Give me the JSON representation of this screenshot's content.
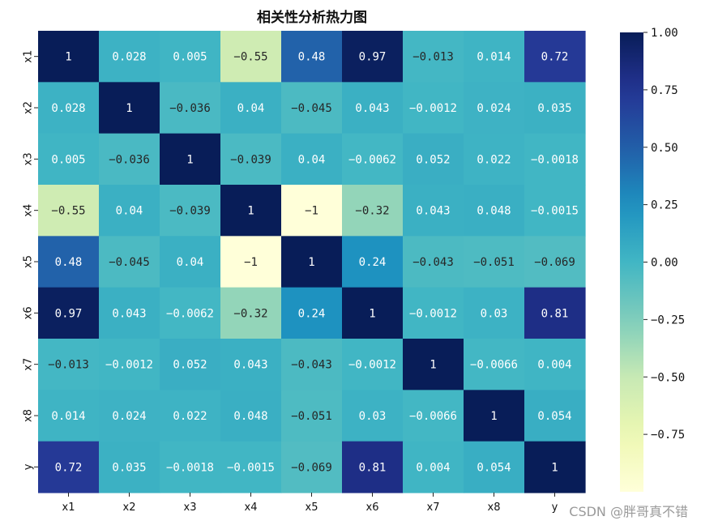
{
  "chart_data": {
    "type": "heatmap",
    "title": "相关性分析热力图",
    "x_labels": [
      "x1",
      "x2",
      "x3",
      "x4",
      "x5",
      "x6",
      "x7",
      "x8",
      "y"
    ],
    "y_labels": [
      "x1",
      "x2",
      "x3",
      "x4",
      "x5",
      "x6",
      "x7",
      "x8",
      "y"
    ],
    "values": [
      [
        1,
        0.028,
        0.005,
        -0.55,
        0.48,
        0.97,
        -0.013,
        0.014,
        0.72
      ],
      [
        0.028,
        1,
        -0.036,
        0.04,
        -0.045,
        0.043,
        -0.0012,
        0.024,
        0.035
      ],
      [
        0.005,
        -0.036,
        1,
        -0.039,
        0.04,
        -0.0062,
        0.052,
        0.022,
        -0.0018
      ],
      [
        -0.55,
        0.04,
        -0.039,
        1,
        -1,
        -0.32,
        0.043,
        0.048,
        -0.0015
      ],
      [
        0.48,
        -0.045,
        0.04,
        -1,
        1,
        0.24,
        -0.043,
        -0.051,
        -0.069
      ],
      [
        0.97,
        0.043,
        -0.0062,
        -0.32,
        0.24,
        1,
        -0.0012,
        0.03,
        0.81
      ],
      [
        -0.013,
        -0.0012,
        0.052,
        0.043,
        -0.043,
        -0.0012,
        1,
        -0.0066,
        0.004
      ],
      [
        0.014,
        0.024,
        0.022,
        0.048,
        -0.051,
        0.03,
        -0.0066,
        1,
        0.054
      ],
      [
        0.72,
        0.035,
        -0.0018,
        -0.0015,
        -0.069,
        0.81,
        0.004,
        0.054,
        1
      ]
    ],
    "colormap": "YlGnBu",
    "vmin": -1,
    "vmax": 1,
    "colorbar_ticks": [
      "1.00",
      "0.75",
      "0.50",
      "0.25",
      "0.00",
      "-0.25",
      "-0.50",
      "-0.75"
    ],
    "colorbar_tick_values": [
      1,
      0.75,
      0.5,
      0.25,
      0,
      -0.25,
      -0.5,
      -0.75
    ]
  },
  "watermark": "CSDN @胖哥真不错"
}
